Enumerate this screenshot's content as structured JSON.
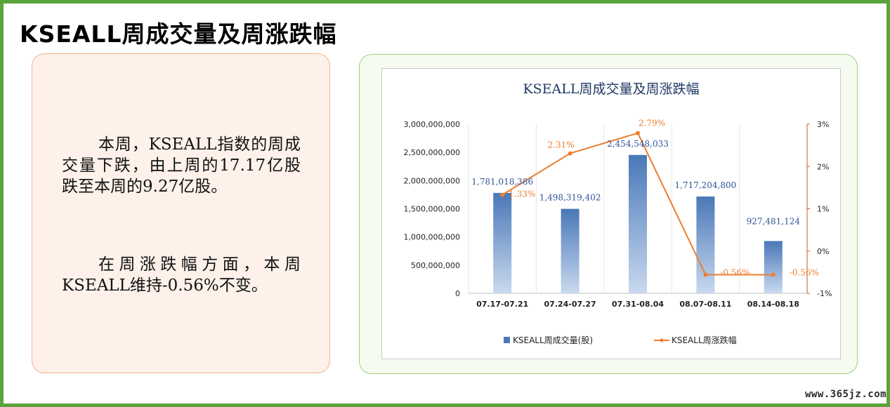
{
  "page": {
    "title": "KSEALL周成交量及周涨跌幅",
    "paragraph1": "本周，KSEALL指数的周成交量下跌，由上周的17.17亿股跌至本周的9.27亿股。",
    "paragraph2": "在周涨跌幅方面，本周KSEALL维持-0.56%不变。",
    "watermark": "www.365jz.com"
  },
  "colors": {
    "frame": "#5aa33b",
    "bar": "#4a78b8",
    "line": "#ed7d31",
    "title": "#1f3864"
  },
  "chart_data": {
    "type": "bar",
    "title": "KSEALL周成交量及周涨跌幅",
    "categories": [
      "07.17-07.21",
      "07.24-07.27",
      "07.31-08.04",
      "08.07-08.11",
      "08.14-08.18"
    ],
    "series": [
      {
        "name": "KSEALL周成交量(股)",
        "type": "bar",
        "axis": "left",
        "values": [
          1781018386,
          1498319402,
          2454548033,
          1717204800,
          927481124
        ],
        "labels": [
          "1,781,018,386",
          "1,498,319,402",
          "2,454,548,033",
          "1,717,204,800",
          "927,481,124"
        ]
      },
      {
        "name": "KSEALL周涨跌幅",
        "type": "line",
        "axis": "right",
        "values": [
          1.33,
          2.31,
          2.79,
          -0.56,
          -0.56
        ],
        "labels": [
          "1.33%",
          "2.31%",
          "2.79%",
          "-0.56%",
          "-0.56%"
        ]
      }
    ],
    "y_left": {
      "ylim": [
        0,
        3000000000
      ],
      "ticks": [
        "0",
        "500,000,000",
        "1,000,000,000",
        "1,500,000,000",
        "2,000,000,000",
        "2,500,000,000",
        "3,000,000,000"
      ],
      "tick_values": [
        0,
        500000000,
        1000000000,
        1500000000,
        2000000000,
        2500000000,
        3000000000
      ]
    },
    "y_right": {
      "ylim": [
        -1,
        3
      ],
      "ticks": [
        "-1%",
        "0%",
        "1%",
        "2%",
        "3%"
      ],
      "tick_values": [
        -1,
        0,
        1,
        2,
        3
      ]
    },
    "legend": "bottom",
    "grid": "vertical"
  }
}
